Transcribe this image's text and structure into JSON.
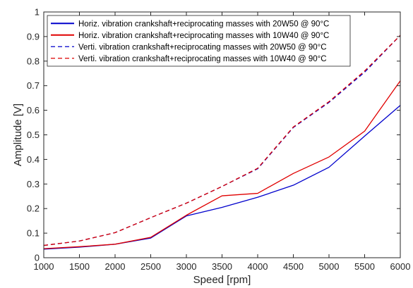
{
  "chart_data": {
    "type": "line",
    "title": "",
    "xlabel": "Speed [rpm]",
    "ylabel": "Amplitude [V]",
    "xlim": [
      1000,
      6000
    ],
    "ylim": [
      0,
      1
    ],
    "xticks": [
      "1000",
      "1500",
      "2000",
      "2500",
      "3000",
      "3500",
      "4000",
      "4500",
      "5000",
      "5500",
      "6000"
    ],
    "yticks": [
      "0",
      "0.1",
      "0.2",
      "0.3",
      "0.4",
      "0.5",
      "0.6",
      "0.7",
      "0.8",
      "0.9",
      "1"
    ],
    "grid": false,
    "legend_position": "top-left",
    "x": [
      1000,
      1500,
      2000,
      2500,
      3000,
      3500,
      4000,
      4500,
      5000,
      5500,
      6000
    ],
    "series": [
      {
        "name": "Horiz. vibration crankshaft+reciprocating masses with 20W50 @ 90°C",
        "color": "#0000cc",
        "style": "solid",
        "values": [
          0.035,
          0.043,
          0.055,
          0.08,
          0.17,
          0.205,
          0.246,
          0.295,
          0.368,
          0.495,
          0.62
        ]
      },
      {
        "name": "Horiz. vibration crankshaft+reciprocating masses with 10W40 @ 90°C",
        "color": "#e00000",
        "style": "solid",
        "values": [
          0.037,
          0.045,
          0.055,
          0.083,
          0.173,
          0.252,
          0.262,
          0.343,
          0.41,
          0.515,
          0.72
        ]
      },
      {
        "name": "Verti. vibration crankshaft+reciprocating masses with 20W50 @ 90°C",
        "color": "#0000cc",
        "style": "dashed",
        "values": [
          0.05,
          0.068,
          0.102,
          0.163,
          0.222,
          0.29,
          0.362,
          0.53,
          0.632,
          0.755,
          0.905
        ]
      },
      {
        "name": "Verti. vibration crankshaft+reciprocating masses with 10W40 @ 90°C",
        "color": "#dd0000",
        "style": "dashed",
        "values": [
          0.05,
          0.068,
          0.102,
          0.163,
          0.222,
          0.29,
          0.364,
          0.532,
          0.635,
          0.76,
          0.905
        ]
      }
    ]
  }
}
